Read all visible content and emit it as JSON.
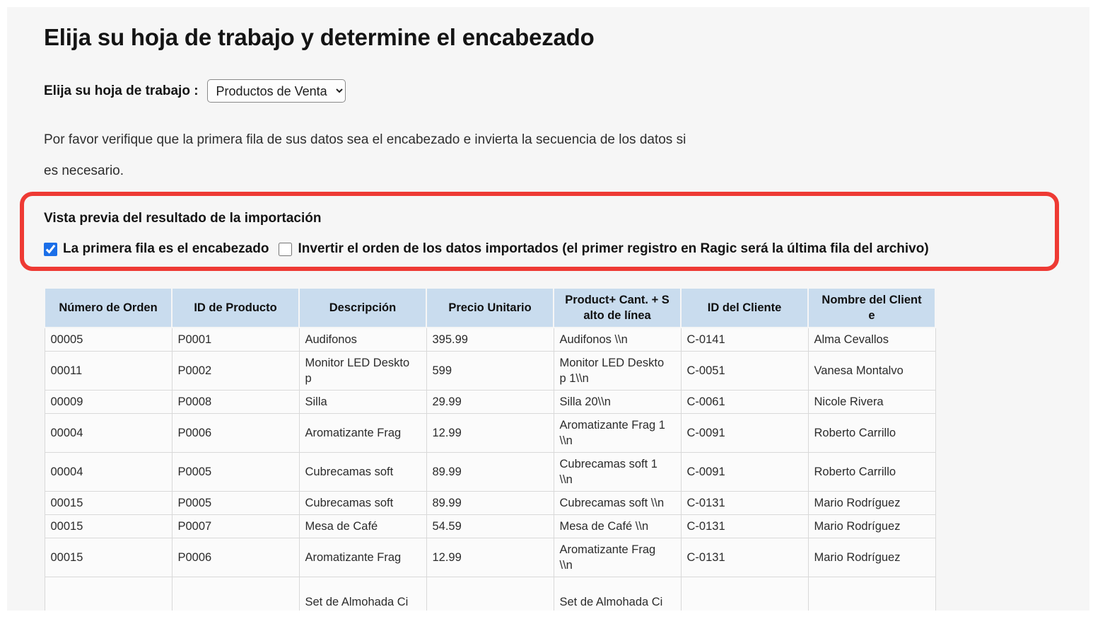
{
  "page": {
    "title": "Elija su hoja de trabajo y determine el encabezado",
    "worksheet": {
      "label": "Elija su hoja de trabajo :",
      "selected_option": "Productos de Venta"
    },
    "instructions": "Por favor verifique que la primera fila de sus datos sea el encabezado e invierta la secuencia de los datos si\nes necesario.",
    "preview": {
      "heading": "Vista previa del resultado de la importación",
      "checkbox_first_row": {
        "label": "La primera fila es el encabezado",
        "checked": true
      },
      "checkbox_invert": {
        "label": "Invertir el orden de los datos importados (el primer registro en Ragic será la última fila del archivo)",
        "checked": false
      }
    }
  },
  "table": {
    "headers": [
      "Número de Orden",
      "ID de Producto",
      "Descripción",
      "Precio Unitario",
      "Product+ Cant. + S\nalto de línea",
      "ID del Cliente",
      "Nombre del Client\ne"
    ],
    "rows": [
      [
        "00005",
        "P0001",
        "Audifonos",
        "395.99",
        "Audifonos \\\\n",
        "C-0141",
        "Alma Cevallos"
      ],
      [
        "00011",
        "P0002",
        "Monitor LED Deskto\np",
        "599",
        "Monitor LED Deskto\np 1\\\\n",
        "C-0051",
        "Vanesa Montalvo"
      ],
      [
        "00009",
        "P0008",
        "Silla",
        "29.99",
        "Silla 20\\\\n",
        "C-0061",
        "Nicole Rivera"
      ],
      [
        "00004",
        "P0006",
        "Aromatizante Frag",
        "12.99",
        "Aromatizante Frag 1\n\\\\n",
        "C-0091",
        "Roberto Carrillo"
      ],
      [
        "00004",
        "P0005",
        "Cubrecamas soft",
        "89.99",
        "Cubrecamas soft 1\n\\\\n",
        "C-0091",
        "Roberto Carrillo"
      ],
      [
        "00015",
        "P0005",
        "Cubrecamas soft",
        "89.99",
        "Cubrecamas soft \\\\n",
        "C-0131",
        "Mario Rodríguez"
      ],
      [
        "00015",
        "P0007",
        "Mesa de Café",
        "54.59",
        "Mesa de Café \\\\n",
        "C-0131",
        "Mario Rodríguez"
      ],
      [
        "00015",
        "P0006",
        "Aromatizante Frag",
        "12.99",
        "Aromatizante Frag\n\\\\n",
        "C-0131",
        "Mario Rodríguez"
      ],
      [
        "",
        "",
        "Set de Almohada Ci",
        "",
        "Set de Almohada Ci",
        "",
        ""
      ]
    ]
  },
  "colors": {
    "highlight_red": "#ee3a34",
    "checkbox_blue": "#1b6fe8",
    "header_bg": "#c9dcee",
    "panel_bg": "#f6f6f6",
    "cell_bg": "#fbfbfb"
  }
}
